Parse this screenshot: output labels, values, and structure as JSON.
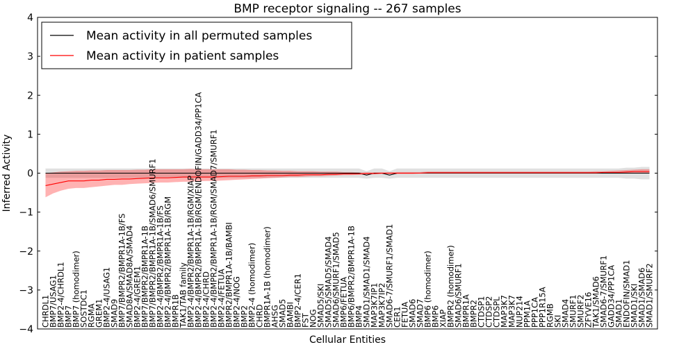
{
  "chart_data": {
    "type": "line",
    "title": "BMP receptor signaling -- 267 samples",
    "xlabel": "Cellular Entities",
    "ylabel": "Inferred Activity",
    "ylim": [
      -4,
      4
    ],
    "yticks": [
      "4",
      "3",
      "2",
      "1",
      "0",
      "−1",
      "−2",
      "−3",
      "−4"
    ],
    "grid": false,
    "legend_position": "top-left",
    "colors": {
      "permuted": "#000000",
      "patient": "#ff0000",
      "permuted_band": "#bbbbbb",
      "patient_band": "#ff0000"
    },
    "categories": [
      "CHRDL1",
      "BMP7/USAG1",
      "BMP2-4/CHRDL1",
      "BMP7",
      "BMP7 (homodimer)",
      "SOSTDC1",
      "RGMA",
      "GREM1",
      "BMP2-4/USAG1",
      "SMAD9",
      "BMP7/BMPR2/BMPR1A-1B/FS",
      "SMAD8A/SMAD8A/SMAD4",
      "BMP2-4/GREM1",
      "BMP7/BMPR2/BMPR1A-1B",
      "BMP7/BMPR2/BMPR1A-1B/SMAD6/SMURF1",
      "BMP2-4/BMPR2/BMPR1A-1B/FS",
      "BMP2-4/BMPR2/BMPR1A-1B/RGM",
      "BMPR1B",
      "TAK1/TAB family",
      "BMP2-4/BMPR2/BMPR1A-1B/RGM/XIAP",
      "BMP2-4/BMPR2/BMPR1A-1B/RGM/ENDOFIN/GADD34/PP1CA",
      "BMP2-4/CHRD",
      "BMP2-4/BMPR2/BMPR1A-1B/RGM/SMAD7/SMURF1",
      "BMP2-4/FETUA",
      "BMPR2/BMPR1A-1B/BAMBI",
      "BMP2-4/NOG",
      "BMP2",
      "BMP2-4 (homodimer)",
      "CHRD",
      "BMPR1A-1B (homodimer)",
      "AHSG",
      "SMAD5",
      "BAMBI",
      "BMP2-4/CER1",
      "FST",
      "NOG",
      "SMAD5/SKI",
      "SMAD5/SMAD5/SMAD4",
      "SMAD6/SMURF1/SMAD5",
      "BMP6/FETUA",
      "BMP6/BMPR2/BMPR1A-1B",
      "BMP4",
      "SMAD1/SMAD1/SMAD4",
      "MAP3K7IP1",
      "MAP3K7IP2",
      "SMAD6-7/SMURF1/SMAD1",
      "CER1",
      "FETUA",
      "SMAD6",
      "SMAD7",
      "BMP6 (homodimer)",
      "BMP6",
      "XIAP",
      "BMPR2 (homodimer)",
      "SMAD6/SMURF1",
      "BMPR1A",
      "BMPR2",
      "CTDSP1",
      "CTDSP2",
      "CTDSPL",
      "MAP3K7",
      "MAP3K7",
      "NUP214",
      "PPM1A",
      "PPP1CA",
      "PPP1R15A",
      "RGMB",
      "SKI",
      "SMAD4",
      "SMURF1",
      "SMURF2",
      "ZFYVE16",
      "TAK1/SMAD6",
      "SMAD6-7/SMURF1",
      "GADD34/PP1CA",
      "SMAD1",
      "ENDOFIN/SMAD1",
      "SMAD1/SKI",
      "SMAD1/SMAD6",
      "SMAD1/SMURF2"
    ],
    "series": [
      {
        "name": "Mean activity in all permuted samples",
        "values": [
          0,
          0,
          0,
          0,
          0,
          0,
          0,
          0,
          0,
          0,
          0,
          0,
          0,
          0,
          0,
          0,
          0,
          0,
          0,
          0,
          0,
          0,
          0,
          0,
          0,
          0,
          0,
          0,
          0,
          0,
          0,
          0,
          0,
          0,
          0,
          0,
          0,
          0,
          0,
          0,
          0,
          0,
          -0.05,
          0,
          0,
          -0.05,
          0,
          0,
          0,
          0,
          0,
          0,
          0,
          0,
          0,
          0,
          0,
          0,
          0,
          0,
          0,
          0,
          0,
          0,
          0,
          0,
          0,
          0,
          0,
          0,
          0,
          0,
          0,
          0,
          0,
          0,
          0,
          0,
          0,
          0
        ],
        "lower": [
          -0.12,
          -0.12,
          -0.12,
          -0.12,
          -0.12,
          -0.12,
          -0.12,
          -0.12,
          -0.12,
          -0.12,
          -0.12,
          -0.12,
          -0.12,
          -0.12,
          -0.12,
          -0.12,
          -0.12,
          -0.12,
          -0.12,
          -0.12,
          -0.12,
          -0.12,
          -0.12,
          -0.12,
          -0.12,
          -0.12,
          -0.12,
          -0.12,
          -0.12,
          -0.12,
          -0.12,
          -0.12,
          -0.12,
          -0.12,
          -0.12,
          -0.12,
          -0.12,
          -0.12,
          -0.12,
          -0.12,
          -0.12,
          -0.12,
          -0.14,
          -0.12,
          -0.12,
          -0.14,
          -0.12,
          -0.12,
          -0.12,
          -0.12,
          -0.12,
          -0.12,
          -0.12,
          -0.12,
          -0.12,
          -0.12,
          -0.12,
          -0.12,
          -0.12,
          -0.12,
          -0.12,
          -0.12,
          -0.12,
          -0.12,
          -0.12,
          -0.12,
          -0.12,
          -0.12,
          -0.12,
          -0.12,
          -0.12,
          -0.12,
          -0.12,
          -0.12,
          -0.12,
          -0.12,
          -0.14,
          -0.14,
          -0.16,
          -0.16
        ],
        "upper": [
          0.12,
          0.12,
          0.12,
          0.12,
          0.12,
          0.12,
          0.12,
          0.12,
          0.12,
          0.12,
          0.12,
          0.12,
          0.12,
          0.12,
          0.12,
          0.12,
          0.12,
          0.12,
          0.12,
          0.12,
          0.12,
          0.12,
          0.12,
          0.12,
          0.12,
          0.12,
          0.12,
          0.12,
          0.12,
          0.12,
          0.12,
          0.12,
          0.12,
          0.12,
          0.12,
          0.12,
          0.12,
          0.12,
          0.12,
          0.12,
          0.12,
          0.12,
          0.05,
          0.12,
          0.12,
          0.05,
          0.12,
          0.12,
          0.12,
          0.12,
          0.12,
          0.12,
          0.12,
          0.12,
          0.12,
          0.12,
          0.12,
          0.12,
          0.12,
          0.12,
          0.12,
          0.12,
          0.12,
          0.12,
          0.12,
          0.12,
          0.12,
          0.12,
          0.12,
          0.12,
          0.12,
          0.12,
          0.12,
          0.12,
          0.12,
          0.12,
          0.14,
          0.14,
          0.16,
          0.16
        ]
      },
      {
        "name": "Mean activity in patient samples",
        "values": [
          -0.32,
          -0.28,
          -0.24,
          -0.2,
          -0.2,
          -0.2,
          -0.18,
          -0.18,
          -0.16,
          -0.16,
          -0.15,
          -0.15,
          -0.14,
          -0.13,
          -0.12,
          -0.12,
          -0.12,
          -0.11,
          -0.1,
          -0.1,
          -0.1,
          -0.1,
          -0.1,
          -0.09,
          -0.08,
          -0.08,
          -0.08,
          -0.07,
          -0.07,
          -0.06,
          -0.06,
          -0.06,
          -0.05,
          -0.05,
          -0.04,
          -0.04,
          -0.04,
          -0.03,
          -0.03,
          -0.02,
          -0.02,
          -0.02,
          -0.01,
          -0.01,
          0,
          0,
          0,
          0,
          0,
          0,
          0.01,
          0.01,
          0.01,
          0.01,
          0.01,
          0.01,
          0.01,
          0.01,
          0.01,
          0.01,
          0.01,
          0.01,
          0.01,
          0.01,
          0.01,
          0.01,
          0.01,
          0.01,
          0.01,
          0.01,
          0.01,
          0.01,
          0.01,
          0.02,
          0.02,
          0.02,
          0.03,
          0.04,
          0.04,
          0.04
        ],
        "lower": [
          -0.62,
          -0.52,
          -0.45,
          -0.4,
          -0.38,
          -0.38,
          -0.36,
          -0.34,
          -0.32,
          -0.3,
          -0.3,
          -0.28,
          -0.27,
          -0.26,
          -0.25,
          -0.24,
          -0.24,
          -0.23,
          -0.22,
          -0.22,
          -0.21,
          -0.2,
          -0.2,
          -0.19,
          -0.18,
          -0.17,
          -0.16,
          -0.15,
          -0.14,
          -0.13,
          -0.12,
          -0.11,
          -0.1,
          -0.1,
          -0.09,
          -0.08,
          -0.08,
          -0.07,
          -0.06,
          -0.05,
          -0.05,
          -0.04,
          -0.03,
          -0.03,
          -0.02,
          -0.02,
          -0.02,
          -0.02,
          -0.02,
          -0.01,
          -0.01,
          -0.01,
          -0.01,
          -0.01,
          -0.01,
          -0.01,
          -0.01,
          -0.01,
          -0.01,
          -0.01,
          -0.01,
          -0.01,
          -0.01,
          -0.01,
          -0.01,
          -0.01,
          -0.01,
          -0.01,
          -0.01,
          -0.01,
          -0.01,
          -0.01,
          -0.01,
          -0.01,
          -0.01,
          -0.01,
          0,
          0,
          0,
          0
        ],
        "upper": [
          0.0,
          0.02,
          0.04,
          0.05,
          0.06,
          0.06,
          0.07,
          0.07,
          0.08,
          0.08,
          0.08,
          0.08,
          0.09,
          0.09,
          0.1,
          0.1,
          0.1,
          0.1,
          0.1,
          0.11,
          0.1,
          0.1,
          0.1,
          0.1,
          0.1,
          0.09,
          0.09,
          0.08,
          0.08,
          0.07,
          0.07,
          0.06,
          0.06,
          0.05,
          0.05,
          0.05,
          0.04,
          0.04,
          0.04,
          0.03,
          0.03,
          0.02,
          0.02,
          0.02,
          0.02,
          0.02,
          0.03,
          0.03,
          0.03,
          0.03,
          0.04,
          0.04,
          0.04,
          0.04,
          0.04,
          0.04,
          0.04,
          0.04,
          0.04,
          0.04,
          0.04,
          0.04,
          0.04,
          0.04,
          0.04,
          0.04,
          0.04,
          0.04,
          0.04,
          0.04,
          0.04,
          0.04,
          0.05,
          0.05,
          0.06,
          0.07,
          0.08,
          0.09,
          0.1,
          0.1
        ]
      }
    ]
  }
}
